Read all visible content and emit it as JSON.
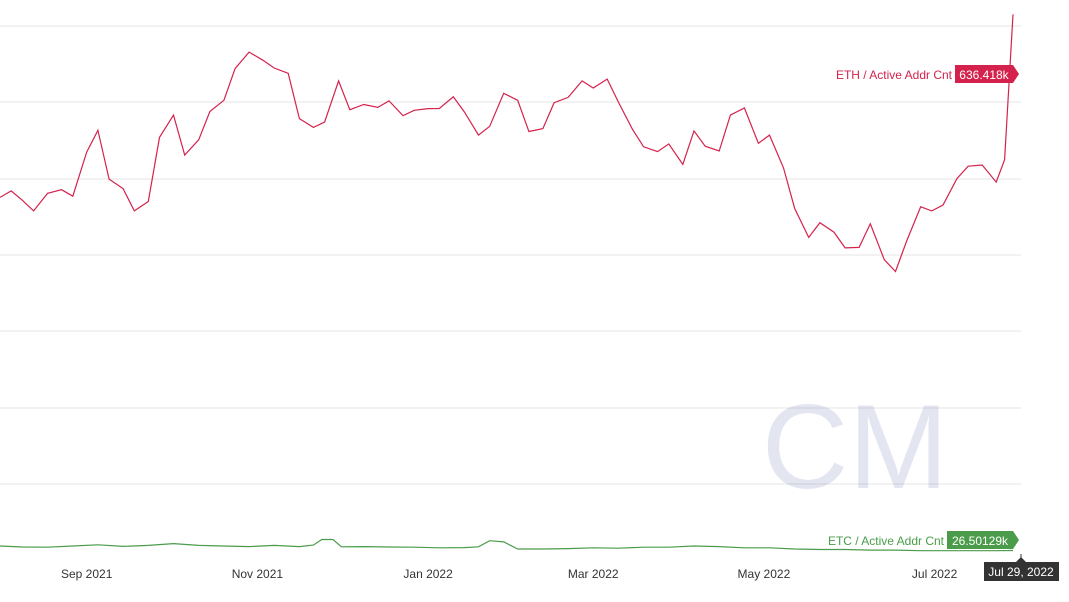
{
  "chart_data": {
    "type": "line",
    "x_axis": {
      "ticks": [
        "Sep 2021",
        "Nov 2021",
        "Jan 2022",
        "Mar 2022",
        "May 2022",
        "Jul 2022"
      ],
      "range": [
        "2021-08-01",
        "2022-07-29"
      ]
    },
    "y_axis_ticks_shown": false,
    "grid": true,
    "cursor_date": "Jul 29, 2022",
    "watermark": "CM",
    "series": [
      {
        "name": "ETH / Active Addr Cnt",
        "color": "#d4224c",
        "last_value_label": "636.418k",
        "points": [
          [
            "2021-08-01",
            0.8173
          ],
          [
            "2021-08-05",
            0.8313
          ],
          [
            "2021-08-09",
            0.8109
          ],
          [
            "2021-08-13",
            0.7878
          ],
          [
            "2021-08-18",
            0.8262
          ],
          [
            "2021-08-23",
            0.8339
          ],
          [
            "2021-08-27",
            0.8198
          ],
          [
            "2021-09-01",
            0.9159
          ],
          [
            "2021-09-05",
            0.9633
          ],
          [
            "2021-09-09",
            0.857
          ],
          [
            "2021-09-14",
            0.8364
          ],
          [
            "2021-09-18",
            0.7878
          ],
          [
            "2021-09-23",
            0.8083
          ],
          [
            "2021-09-27",
            0.9479
          ],
          [
            "2021-10-02",
            0.9966
          ],
          [
            "2021-10-06",
            0.9095
          ],
          [
            "2021-10-11",
            0.9428
          ],
          [
            "2021-10-15",
            1.0044
          ],
          [
            "2021-10-20",
            1.0287
          ],
          [
            "2021-10-24",
            1.0979
          ],
          [
            "2021-10-29",
            1.1338
          ],
          [
            "2021-11-03",
            1.1158
          ],
          [
            "2021-11-07",
            1.0992
          ],
          [
            "2021-11-12",
            1.0876
          ],
          [
            "2021-11-16",
            0.9889
          ],
          [
            "2021-11-21",
            0.9697
          ],
          [
            "2021-11-25",
            0.9812
          ],
          [
            "2021-11-30",
            1.071
          ],
          [
            "2021-12-04",
            1.0082
          ],
          [
            "2021-12-09",
            1.0197
          ],
          [
            "2021-12-14",
            1.0133
          ],
          [
            "2021-12-18",
            1.0274
          ],
          [
            "2021-12-23",
            0.9953
          ],
          [
            "2021-12-27",
            1.0069
          ],
          [
            "2022-01-01",
            1.0107
          ],
          [
            "2022-01-05",
            1.0108
          ],
          [
            "2022-01-10",
            1.0364
          ],
          [
            "2022-01-14",
            1.003
          ],
          [
            "2022-01-19",
            0.953
          ],
          [
            "2022-01-23",
            0.9722
          ],
          [
            "2022-01-28",
            1.0441
          ],
          [
            "2022-02-02",
            1.0287
          ],
          [
            "2022-02-06",
            0.9607
          ],
          [
            "2022-02-11",
            0.9671
          ],
          [
            "2022-02-15",
            1.0236
          ],
          [
            "2022-02-20",
            1.0351
          ],
          [
            "2022-02-25",
            1.071
          ],
          [
            "2022-03-01",
            1.0556
          ],
          [
            "2022-03-06",
            1.0749
          ],
          [
            "2022-03-10",
            1.0248
          ],
          [
            "2022-03-15",
            0.9658
          ],
          [
            "2022-03-19",
            0.9274
          ],
          [
            "2022-03-24",
            0.9171
          ],
          [
            "2022-03-28",
            0.9338
          ],
          [
            "2022-04-02",
            0.889
          ],
          [
            "2022-04-06",
            0.962
          ],
          [
            "2022-04-10",
            0.9287
          ],
          [
            "2022-04-15",
            0.9184
          ],
          [
            "2022-04-19",
            0.9966
          ],
          [
            "2022-04-24",
            1.012
          ],
          [
            "2022-04-29",
            0.9351
          ],
          [
            "2022-05-03",
            0.953
          ],
          [
            "2022-05-08",
            0.8814
          ],
          [
            "2022-05-12",
            0.793
          ],
          [
            "2022-05-17",
            0.7301
          ],
          [
            "2022-05-21",
            0.7622
          ],
          [
            "2022-05-26",
            0.7417
          ],
          [
            "2022-05-30",
            0.7071
          ],
          [
            "2022-06-04",
            0.7083
          ],
          [
            "2022-06-08",
            0.7596
          ],
          [
            "2022-06-13",
            0.6814
          ],
          [
            "2022-06-17",
            0.6558
          ],
          [
            "2022-06-21",
            0.7224
          ],
          [
            "2022-06-26",
            0.7968
          ],
          [
            "2022-06-30",
            0.7878
          ],
          [
            "2022-07-04",
            0.8006
          ],
          [
            "2022-07-09",
            0.8583
          ],
          [
            "2022-07-13",
            0.8852
          ],
          [
            "2022-07-18",
            0.8878
          ],
          [
            "2022-07-23",
            0.8505
          ],
          [
            "2022-07-26",
            0.8993
          ],
          [
            "2022-07-29",
            1.2159
          ]
        ]
      },
      {
        "name": "ETC / Active Addr Cnt",
        "color": "#4a9c4a",
        "last_value_label": "26.50129k",
        "points": [
          [
            "2021-08-01",
            0.0577
          ],
          [
            "2021-08-09",
            0.0556
          ],
          [
            "2021-08-18",
            0.0551
          ],
          [
            "2021-08-27",
            0.0577
          ],
          [
            "2021-09-05",
            0.0603
          ],
          [
            "2021-09-14",
            0.0569
          ],
          [
            "2021-09-23",
            0.059
          ],
          [
            "2021-10-02",
            0.0629
          ],
          [
            "2021-10-11",
            0.059
          ],
          [
            "2021-10-20",
            0.0577
          ],
          [
            "2021-10-29",
            0.0564
          ],
          [
            "2021-11-07",
            0.059
          ],
          [
            "2021-11-16",
            0.0564
          ],
          [
            "2021-11-21",
            0.0596
          ],
          [
            "2021-11-24",
            0.0718
          ],
          [
            "2021-11-28",
            0.0718
          ],
          [
            "2021-12-01",
            0.0559
          ],
          [
            "2021-12-09",
            0.0564
          ],
          [
            "2021-12-18",
            0.0556
          ],
          [
            "2021-12-27",
            0.0551
          ],
          [
            "2022-01-05",
            0.0538
          ],
          [
            "2022-01-14",
            0.0543
          ],
          [
            "2022-01-19",
            0.0559
          ],
          [
            "2022-01-23",
            0.0692
          ],
          [
            "2022-01-28",
            0.0667
          ],
          [
            "2022-02-02",
            0.0513
          ],
          [
            "2022-02-11",
            0.0513
          ],
          [
            "2022-02-20",
            0.0521
          ],
          [
            "2022-03-01",
            0.0538
          ],
          [
            "2022-03-10",
            0.053
          ],
          [
            "2022-03-19",
            0.0551
          ],
          [
            "2022-03-28",
            0.0551
          ],
          [
            "2022-04-06",
            0.0577
          ],
          [
            "2022-04-15",
            0.0564
          ],
          [
            "2022-04-24",
            0.0538
          ],
          [
            "2022-05-03",
            0.0538
          ],
          [
            "2022-05-12",
            0.0513
          ],
          [
            "2022-05-21",
            0.05
          ],
          [
            "2022-05-30",
            0.05
          ],
          [
            "2022-06-08",
            0.0487
          ],
          [
            "2022-06-17",
            0.0487
          ],
          [
            "2022-06-26",
            0.0474
          ],
          [
            "2022-07-04",
            0.0474
          ],
          [
            "2022-07-13",
            0.0474
          ],
          [
            "2022-07-23",
            0.0474
          ],
          [
            "2022-07-29",
            0.0479
          ]
        ]
      }
    ]
  }
}
